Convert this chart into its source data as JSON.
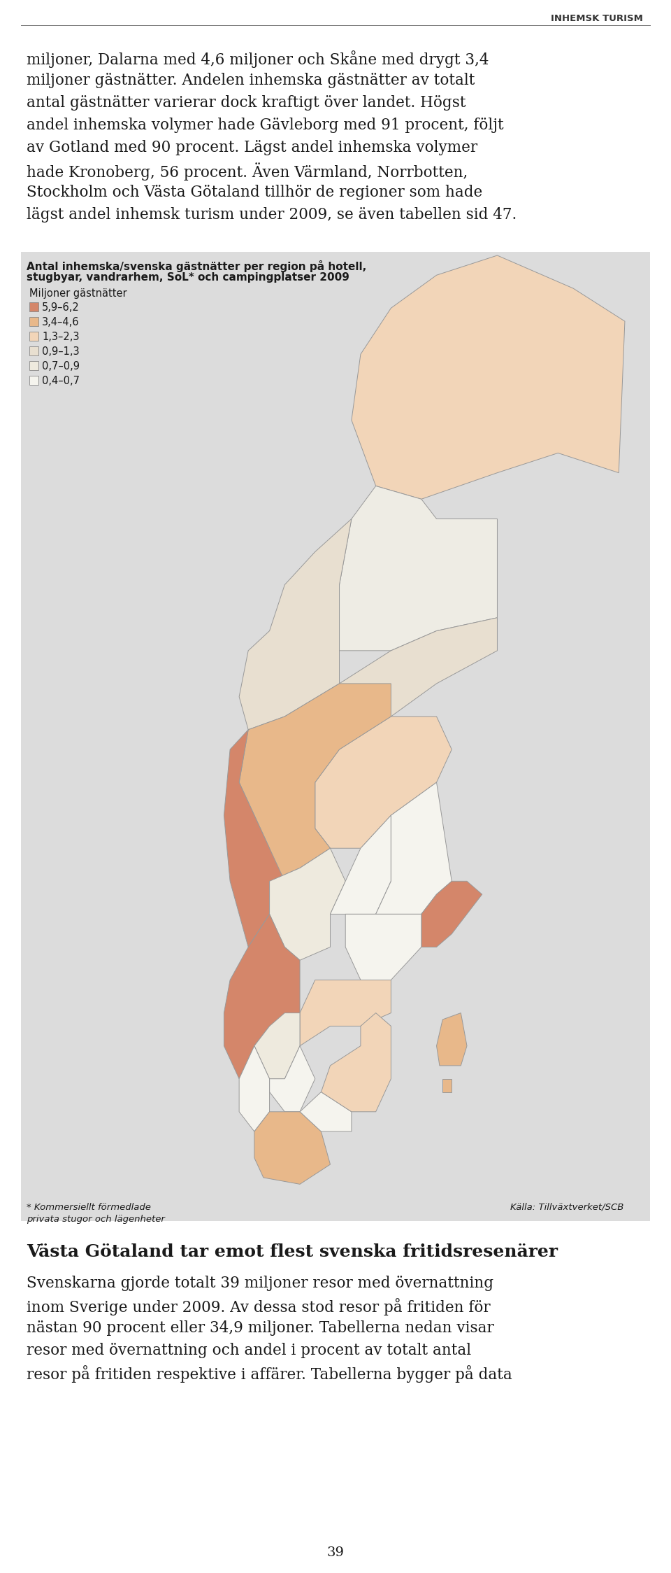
{
  "header_text": "INHEMSK TURISM",
  "body_text_1": "miljoner, Dalarna med 4,6 miljoner och Skåne med drygt 3,4\nmiljoner gästnätter. Andelen inhemska gästnätter av totalt\nantal gästnätter varierar dock kraftigt över landet. Högst\nandel inhemska volymer hade Gävleborg med 91 procent, följt\nav Gotland med 90 procent. Lägst andel inhemska volymer\nhade Kronoberg, 56 procent. Även Värmland, Norrbotten,\nStockholm och Västa Götaland tillhör de regioner som hade\nlägst andel inhemsk turism under 2009, se även tabellen sid 47.",
  "map_title_line1": "Antal inhemska/svenska gästnätter per region på hotell,",
  "map_title_line2": "stugbyar, vandrarhem, SoL* och campingplatser 2009",
  "legend_title": "Miljoner gästnätter",
  "legend_items": [
    {
      "label": "5,9–6,2",
      "color": "#d4866a"
    },
    {
      "label": "3,4–4,6",
      "color": "#e8b88a"
    },
    {
      "label": "1,3–2,3",
      "color": "#f2d5b8"
    },
    {
      "label": "0,9–1,3",
      "color": "#e8dfd0"
    },
    {
      "label": "0,7–0,9",
      "color": "#eeeade"
    },
    {
      "label": "0,4–0,7",
      "color": "#f5f4ee"
    }
  ],
  "footnote_line1": "* Kommersiellt förmedlade",
  "footnote_line2": "privata stugor och lägenheter",
  "source": "Källa: Tillväxtverket/SCB",
  "section_heading": "Västa Götaland tar emot flest svenska fritidsresenärer",
  "body_text_2": "Svenskarna gjorde totalt 39 miljoner resor med övernattning\ninom Sverige under 2009. Av dessa stod resor på fritiden för\nnästan 90 procent eller 34,9 miljoner. Tabellerna nedan visar\nresor med övernattning och andel i procent av totalt antal\nresor på fritiden respektive i affärer. Tabellerna bygger på data",
  "page_number": "39",
  "bg_color": "#ffffff",
  "text_color": "#1a1a1a",
  "map_bg": "#dcdcdc",
  "body_fontsize": 15.5,
  "header_fontsize": 9.5,
  "section_heading_fontsize": 18,
  "map_title_fontsize": 11,
  "legend_fontsize": 10.5,
  "footnote_fontsize": 9.5
}
